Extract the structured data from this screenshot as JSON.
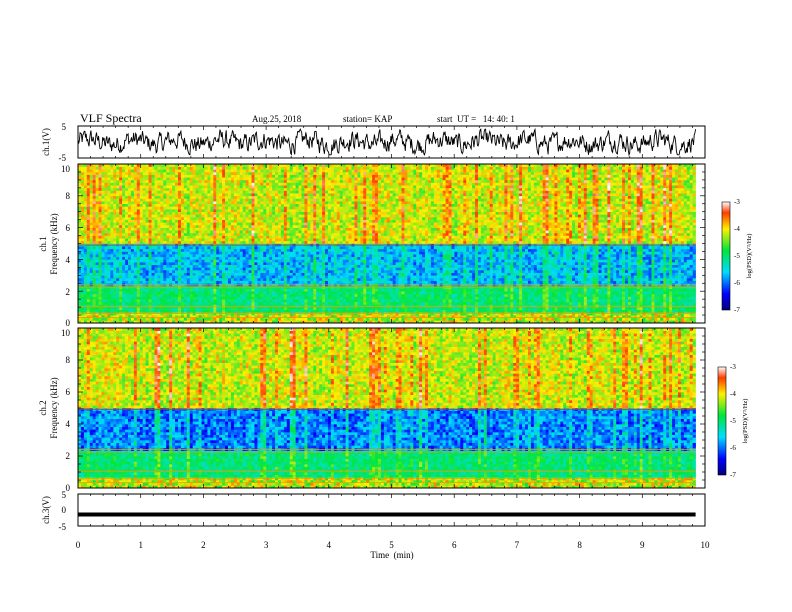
{
  "header": {
    "title": "VLF Spectra",
    "date": "Aug.25, 2018",
    "station": "station= KAP",
    "start_ut": "start  UT =   14: 40: 1"
  },
  "chart_data": [
    {
      "type": "line",
      "panel": "ch1-waveform",
      "ylabel": "ch.1(V)",
      "ylim": [
        -5,
        5
      ],
      "yticks": [
        "5",
        "-5"
      ],
      "xlim": [
        0,
        10
      ],
      "series": [
        {
          "description_values_min": -4,
          "description_values_max": 4,
          "data_end_min": 9.85
        }
      ]
    },
    {
      "type": "heatmap",
      "panel": "ch1-spectrogram",
      "ylabel_line1": "ch.1",
      "ylabel_line2": "Frequency (kHz)",
      "ylim": [
        0,
        10
      ],
      "yticks": [
        "0",
        "2",
        "4",
        "6",
        "8",
        "10"
      ],
      "xlim": [
        0,
        10
      ],
      "colorbar": {
        "label": "log(PSD)(V²/Hz)",
        "range": [
          -7,
          -3
        ],
        "ticks": [
          "-3",
          "-4",
          "-5",
          "-6",
          "-7"
        ]
      }
    },
    {
      "type": "heatmap",
      "panel": "ch2-spectrogram",
      "ylabel_line1": "ch.2",
      "ylabel_line2": "Frequency (kHz)",
      "ylim": [
        0,
        10
      ],
      "yticks": [
        "0",
        "2",
        "4",
        "6",
        "8",
        "10"
      ],
      "xlim": [
        0,
        10
      ],
      "colorbar": {
        "label": "log(PSD)(V²/Hz)",
        "range": [
          -7,
          -3
        ],
        "ticks": [
          "-3",
          "-4",
          "-5",
          "-6",
          "-7"
        ]
      }
    },
    {
      "type": "line",
      "panel": "ch3-waveform",
      "ylabel": "ch.3(V)",
      "ylim": [
        -5,
        5
      ],
      "yticks": [
        "5",
        "0",
        "-5"
      ],
      "xlim": [
        0,
        10
      ],
      "xticks": [
        "0",
        "1",
        "2",
        "3",
        "4",
        "5",
        "6",
        "7",
        "8",
        "9",
        "10"
      ],
      "xlabel": "Time  (min)",
      "series": [
        {
          "constant_value": -1.4,
          "data_end_min": 9.85
        }
      ]
    }
  ],
  "colors": {
    "axes": "#000000",
    "waveform": "#000000"
  }
}
